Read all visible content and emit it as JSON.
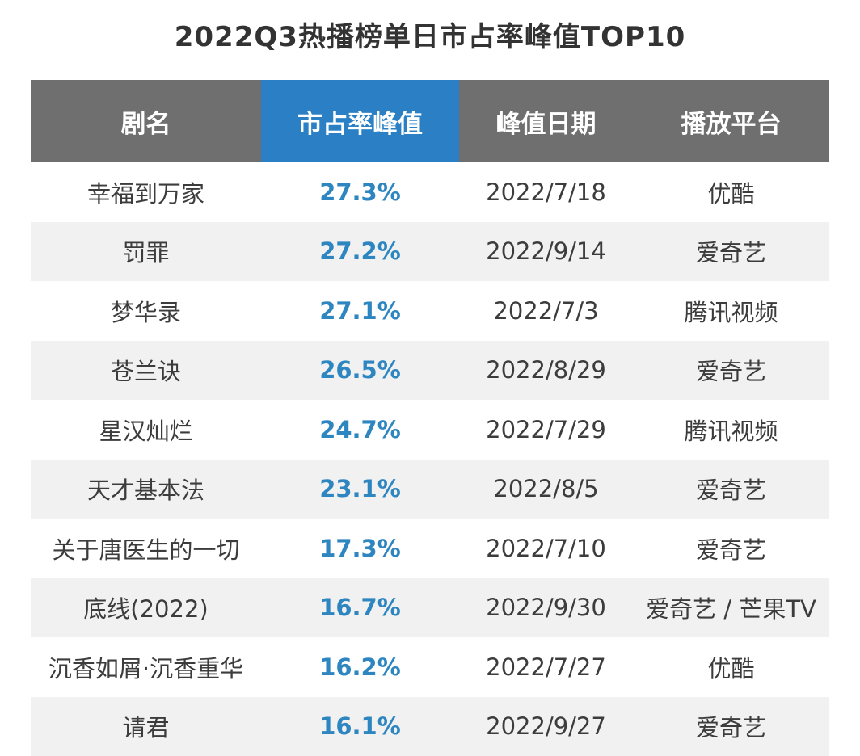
{
  "chart_data": {
    "type": "table",
    "title": "2022Q3热播榜单日市占率峰值TOP10",
    "columns": [
      "剧名",
      "市占率峰值",
      "峰值日期",
      "播放平台"
    ],
    "highlight_column": 1,
    "colors": {
      "header_bg": "#6f6f6f",
      "highlight_header_bg": "#2b80c5",
      "share_text": "#2e86c1",
      "alt_row_bg": "#f1f1f1"
    },
    "rows": [
      {
        "name": "幸福到万家",
        "share": "27.3%",
        "date": "2022/7/18",
        "platform": "优酷"
      },
      {
        "name": "罚罪",
        "share": "27.2%",
        "date": "2022/9/14",
        "platform": "爱奇艺"
      },
      {
        "name": "梦华录",
        "share": "27.1%",
        "date": "2022/7/3",
        "platform": "腾讯视频"
      },
      {
        "name": "苍兰诀",
        "share": "26.5%",
        "date": "2022/8/29",
        "platform": "爱奇艺"
      },
      {
        "name": "星汉灿烂",
        "share": "24.7%",
        "date": "2022/7/29",
        "platform": "腾讯视频"
      },
      {
        "name": "天才基本法",
        "share": "23.1%",
        "date": "2022/8/5",
        "platform": "爱奇艺"
      },
      {
        "name": "关于唐医生的一切",
        "share": "17.3%",
        "date": "2022/7/10",
        "platform": "爱奇艺"
      },
      {
        "name": "底线(2022)",
        "share": "16.7%",
        "date": "2022/9/30",
        "platform": "爱奇艺 / 芒果TV"
      },
      {
        "name": "沉香如屑·沉香重华",
        "share": "16.2%",
        "date": "2022/7/27",
        "platform": "优酷"
      },
      {
        "name": "请君",
        "share": "16.1%",
        "date": "2022/9/27",
        "platform": "爱奇艺"
      }
    ]
  }
}
